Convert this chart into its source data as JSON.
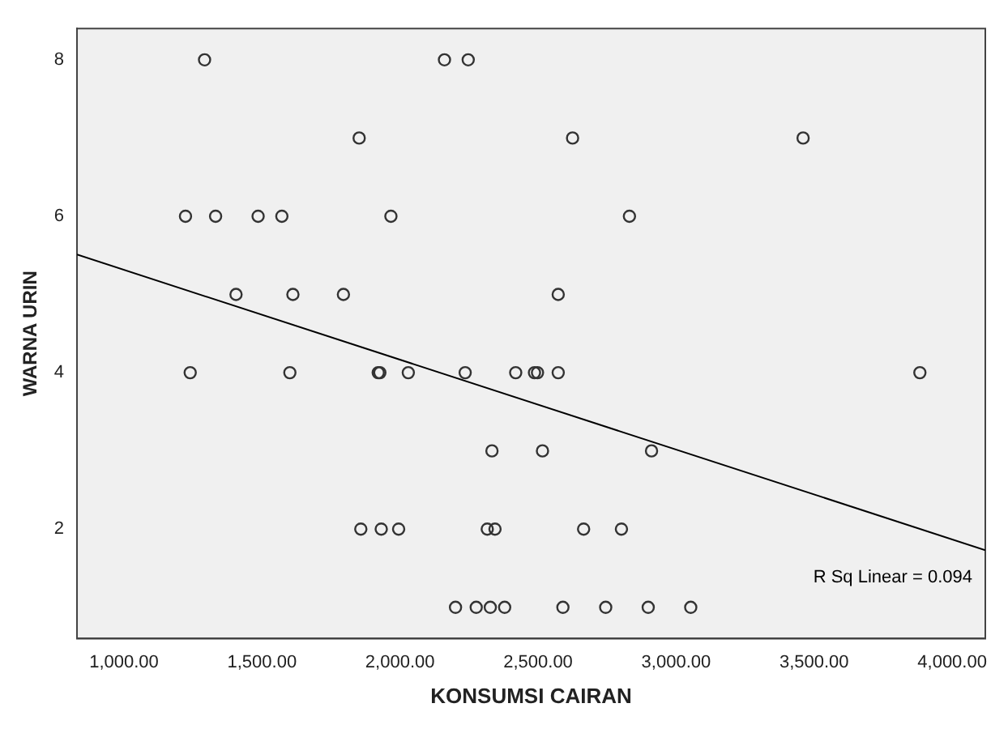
{
  "chart_data": {
    "type": "scatter",
    "xlabel": "KONSUMSI CAIRAN",
    "ylabel": "WARNA URIN",
    "xlim": [
      830,
      4120
    ],
    "ylim": [
      0.6,
      8.4
    ],
    "xticks": [
      {
        "value": 1000,
        "label": "1,000.00"
      },
      {
        "value": 1500,
        "label": "1,500.00"
      },
      {
        "value": 2000,
        "label": "2,000.00"
      },
      {
        "value": 2500,
        "label": "2,500.00"
      },
      {
        "value": 3000,
        "label": "3,000.00"
      },
      {
        "value": 3500,
        "label": "3,500.00"
      },
      {
        "value": 4000,
        "label": "4,000.00"
      }
    ],
    "yticks": [
      2,
      4,
      6,
      8
    ],
    "grid": false,
    "legend": false,
    "marker": "circle",
    "annotations": [
      "R Sq Linear = 0.094"
    ],
    "series": [
      {
        "color": "#333333",
        "x": [
          1292,
          2161,
          2247,
          1852,
          2625,
          3460,
          1223,
          1332,
          1486,
          1572,
          1967,
          2831,
          1406,
          1612,
          1795,
          2573,
          1240,
          1601,
          1921,
          1927,
          2030,
          2236,
          2419,
          2487,
          2498,
          2573,
          3883,
          2333,
          2516,
          2911,
          1858,
          1932,
          1995,
          2316,
          2344,
          2665,
          2802,
          2201,
          2276,
          2327,
          2379,
          2590,
          2745,
          2899,
          3053
        ],
        "values": [
          8,
          8,
          8,
          7,
          7,
          7,
          6,
          6,
          6,
          6,
          6,
          6,
          5,
          5,
          5,
          5,
          4,
          4,
          4,
          4,
          4,
          4,
          4,
          4,
          4,
          4,
          4,
          3,
          3,
          3,
          2,
          2,
          2,
          2,
          2,
          2,
          2,
          1,
          1,
          1,
          1,
          1,
          1,
          1,
          1
        ]
      },
      {
        "type": "line",
        "color": "#000000",
        "marker": "none",
        "x": [
          830,
          4120
        ],
        "values": [
          5.51,
          1.73
        ]
      }
    ]
  }
}
